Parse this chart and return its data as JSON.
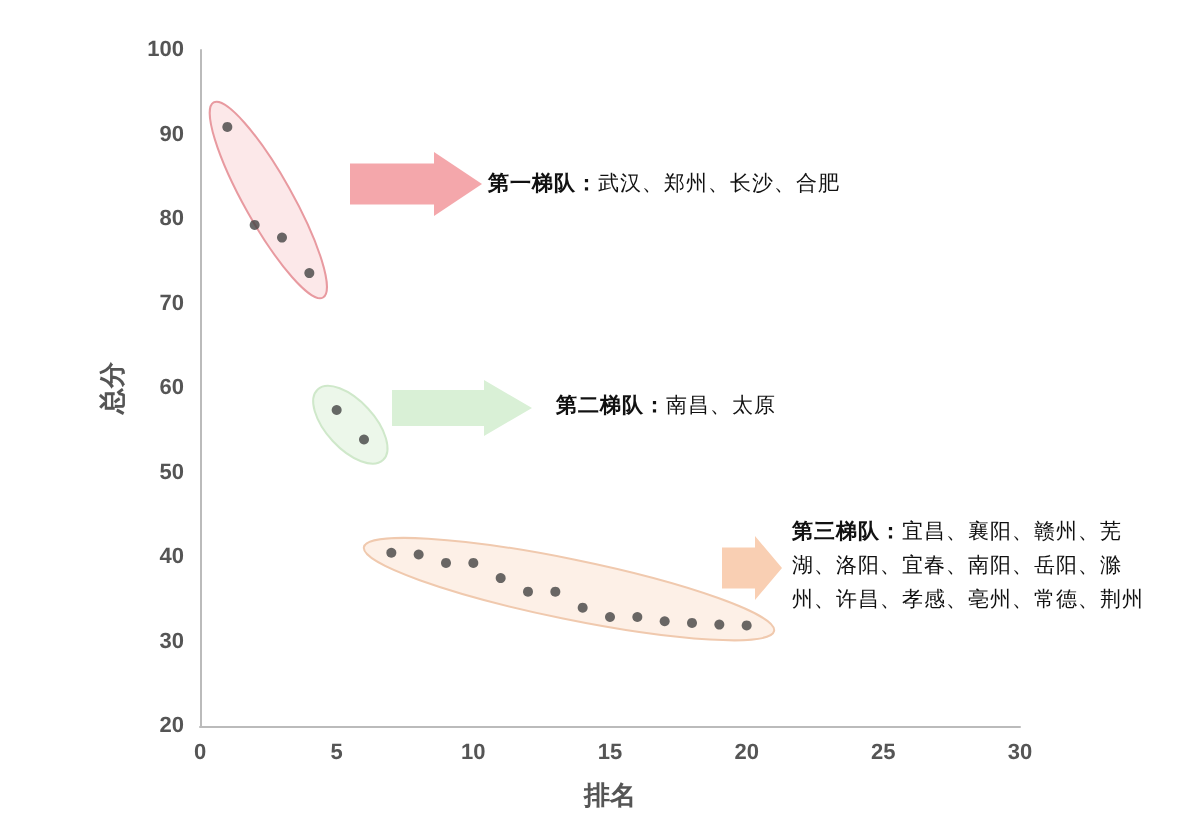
{
  "chart_data": {
    "type": "scatter",
    "xlabel": "排名",
    "ylabel": "总分",
    "series": [
      {
        "color": "#444444",
        "x": [
          1,
          2,
          3,
          4
        ],
        "values": [
          90.9,
          79.3,
          77.8,
          73.6
        ]
      },
      {
        "color": "#444444",
        "x": [
          5,
          6
        ],
        "values": [
          57.4,
          53.9
        ]
      },
      {
        "color": "#444444",
        "x": [
          7,
          8,
          9,
          10,
          11,
          12,
          13,
          14,
          15,
          16,
          17,
          18,
          19,
          20
        ],
        "values": [
          40.5,
          40.3,
          39.3,
          39.3,
          37.5,
          35.9,
          35.9,
          34.0,
          32.9,
          32.9,
          32.4,
          32.2,
          32.0,
          31.9
        ]
      }
    ],
    "annotations": [
      "第一梯队：武汉、郑州、长沙、合肥",
      "第二梯队：南昌、太原",
      "第三梯队：宜昌、襄阳、赣州、芜湖、洛阳、宜春、南阳、岳阳、滁州、许昌、孝感、亳州、常德、荆州"
    ],
    "xlim": [
      0,
      30
    ],
    "xticks": [
      0,
      5,
      10,
      15,
      20,
      25,
      30
    ],
    "ylim": [
      20,
      100
    ],
    "yticks": [
      20,
      30,
      40,
      50,
      60,
      70,
      80,
      90,
      100
    ],
    "grid": false,
    "marker": "circle"
  }
}
